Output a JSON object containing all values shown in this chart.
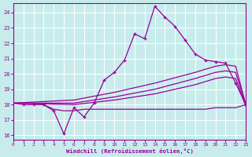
{
  "xlabel": "Windchill (Refroidissement éolien,°C)",
  "xlim": [
    0,
    23
  ],
  "ylim": [
    15.7,
    24.6
  ],
  "yticks": [
    16,
    17,
    18,
    19,
    20,
    21,
    22,
    23,
    24
  ],
  "xticks": [
    0,
    1,
    2,
    3,
    4,
    5,
    6,
    7,
    8,
    9,
    10,
    11,
    12,
    13,
    14,
    15,
    16,
    17,
    18,
    19,
    20,
    21,
    22,
    23
  ],
  "background_color": "#c8ecec",
  "grid_color": "#b0d8d8",
  "line_color": "#990099",
  "curve_main_x": [
    0,
    1,
    2,
    3,
    4,
    5,
    6,
    7,
    8,
    9,
    10,
    11,
    12,
    13,
    14,
    15,
    16,
    17,
    18,
    19,
    20,
    21,
    22,
    23
  ],
  "curve_main_y": [
    18.1,
    18.0,
    18.0,
    18.0,
    17.6,
    16.1,
    17.8,
    17.2,
    18.1,
    19.6,
    20.1,
    20.9,
    22.6,
    22.3,
    24.4,
    23.7,
    23.1,
    22.2,
    21.3,
    20.9,
    20.8,
    20.7,
    19.4,
    18.0
  ],
  "diag_high_x": [
    0,
    6,
    10,
    14,
    18,
    20,
    21,
    22,
    23
  ],
  "diag_high_y": [
    18.1,
    18.3,
    18.8,
    19.4,
    20.1,
    20.5,
    20.6,
    20.5,
    18.0
  ],
  "diag_mid_x": [
    0,
    6,
    10,
    14,
    18,
    20,
    21,
    22,
    23
  ],
  "diag_mid_y": [
    18.1,
    18.1,
    18.5,
    19.0,
    19.7,
    20.1,
    20.2,
    20.1,
    18.0
  ],
  "diag_low_x": [
    0,
    6,
    10,
    14,
    18,
    20,
    21,
    22,
    23
  ],
  "diag_low_y": [
    18.1,
    18.0,
    18.3,
    18.7,
    19.3,
    19.7,
    19.8,
    19.7,
    17.9
  ],
  "flat_x": [
    3,
    4,
    5,
    6,
    7,
    8,
    9,
    10,
    11,
    12,
    13,
    14,
    15,
    16,
    17,
    18,
    19,
    20,
    21,
    22,
    23
  ],
  "flat_y": [
    18.0,
    17.7,
    17.6,
    17.6,
    17.7,
    17.7,
    17.7,
    17.7,
    17.7,
    17.7,
    17.7,
    17.7,
    17.7,
    17.7,
    17.7,
    17.7,
    17.7,
    17.8,
    17.8,
    17.8,
    18.0
  ]
}
